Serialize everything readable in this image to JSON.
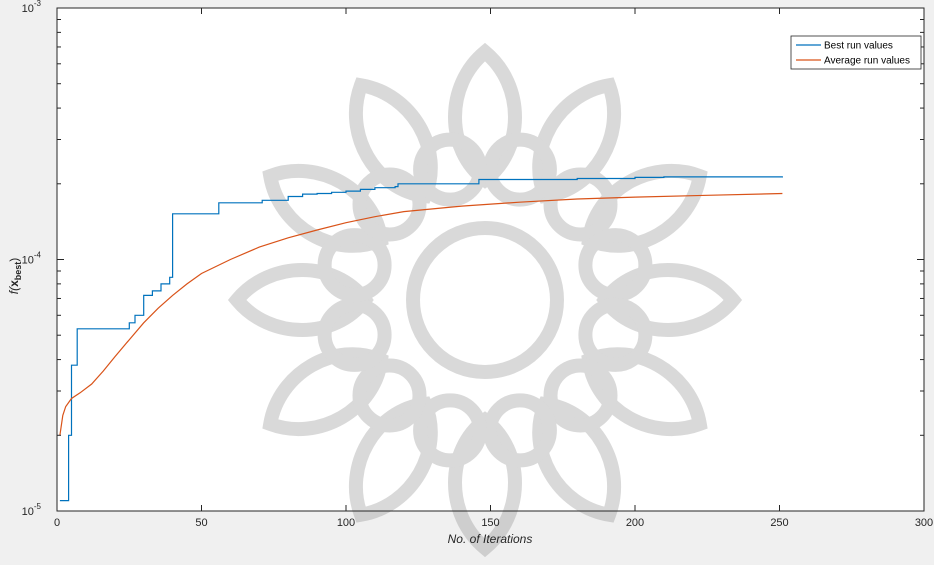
{
  "chart_data": {
    "type": "line",
    "title": "",
    "xlabel": "No. of Iterations",
    "ylabel": {
      "prefix": "f(",
      "bold": "x",
      "sub": "best",
      "suffix": ")"
    },
    "xlim": [
      0,
      300
    ],
    "ylim": [
      1e-05,
      0.001
    ],
    "yscale": "log",
    "x_ticks": [
      0,
      50,
      100,
      150,
      200,
      250,
      300
    ],
    "x_tick_labels": [
      "0",
      "50",
      "100",
      "150",
      "200",
      "250",
      "300"
    ],
    "y_ticks": [
      1e-05,
      0.0001,
      0.001
    ],
    "y_tick_labels": [
      {
        "base": "10",
        "exp": "-5"
      },
      {
        "base": "10",
        "exp": "-4"
      },
      {
        "base": "10",
        "exp": "-3"
      }
    ],
    "grid": false,
    "legend_position": "top-right",
    "series": [
      {
        "name": "Best run values",
        "color": "#0072bd",
        "step": true,
        "points": [
          [
            1,
            1.1e-05
          ],
          [
            3,
            1.1e-05
          ],
          [
            4,
            2e-05
          ],
          [
            5,
            3.8e-05
          ],
          [
            6,
            3.8e-05
          ],
          [
            7,
            5.3e-05
          ],
          [
            24,
            5.3e-05
          ],
          [
            25,
            5.6e-05
          ],
          [
            27,
            6e-05
          ],
          [
            29,
            6e-05
          ],
          [
            30,
            7.2e-05
          ],
          [
            33,
            7.5e-05
          ],
          [
            36,
            8e-05
          ],
          [
            39,
            8.5e-05
          ],
          [
            40,
            0.000152
          ],
          [
            55,
            0.000152
          ],
          [
            56,
            0.000168
          ],
          [
            70,
            0.000168
          ],
          [
            71,
            0.000172
          ],
          [
            78,
            0.000172
          ],
          [
            80,
            0.000178
          ],
          [
            85,
            0.000182
          ],
          [
            90,
            0.000183
          ],
          [
            95,
            0.000185
          ],
          [
            100,
            0.000187
          ],
          [
            105,
            0.00019
          ],
          [
            110,
            0.000193
          ],
          [
            117,
            0.000195
          ],
          [
            118,
            0.0002
          ],
          [
            130,
            0.0002
          ],
          [
            145,
            0.0002
          ],
          [
            146,
            0.000208
          ],
          [
            170,
            0.000208
          ],
          [
            180,
            0.00021
          ],
          [
            200,
            0.000212
          ],
          [
            210,
            0.000213
          ],
          [
            230,
            0.000213
          ],
          [
            251,
            0.000214
          ]
        ]
      },
      {
        "name": "Average run values",
        "color": "#d95319",
        "step": false,
        "points": [
          [
            1,
            2e-05
          ],
          [
            2,
            2.4e-05
          ],
          [
            3,
            2.6e-05
          ],
          [
            5,
            2.8e-05
          ],
          [
            8,
            2.95e-05
          ],
          [
            12,
            3.2e-05
          ],
          [
            16,
            3.6e-05
          ],
          [
            20,
            4.1e-05
          ],
          [
            25,
            4.8e-05
          ],
          [
            30,
            5.6e-05
          ],
          [
            35,
            6.4e-05
          ],
          [
            40,
            7.2e-05
          ],
          [
            45,
            8e-05
          ],
          [
            50,
            8.8e-05
          ],
          [
            60,
            0.0001
          ],
          [
            70,
            0.000112
          ],
          [
            80,
            0.000122
          ],
          [
            90,
            0.000131
          ],
          [
            100,
            0.00014
          ],
          [
            110,
            0.000148
          ],
          [
            120,
            0.000155
          ],
          [
            140,
            0.000163
          ],
          [
            160,
            0.000169
          ],
          [
            180,
            0.000174
          ],
          [
            200,
            0.000177
          ],
          [
            225,
            0.00018
          ],
          [
            251,
            0.000183
          ]
        ]
      }
    ]
  }
}
